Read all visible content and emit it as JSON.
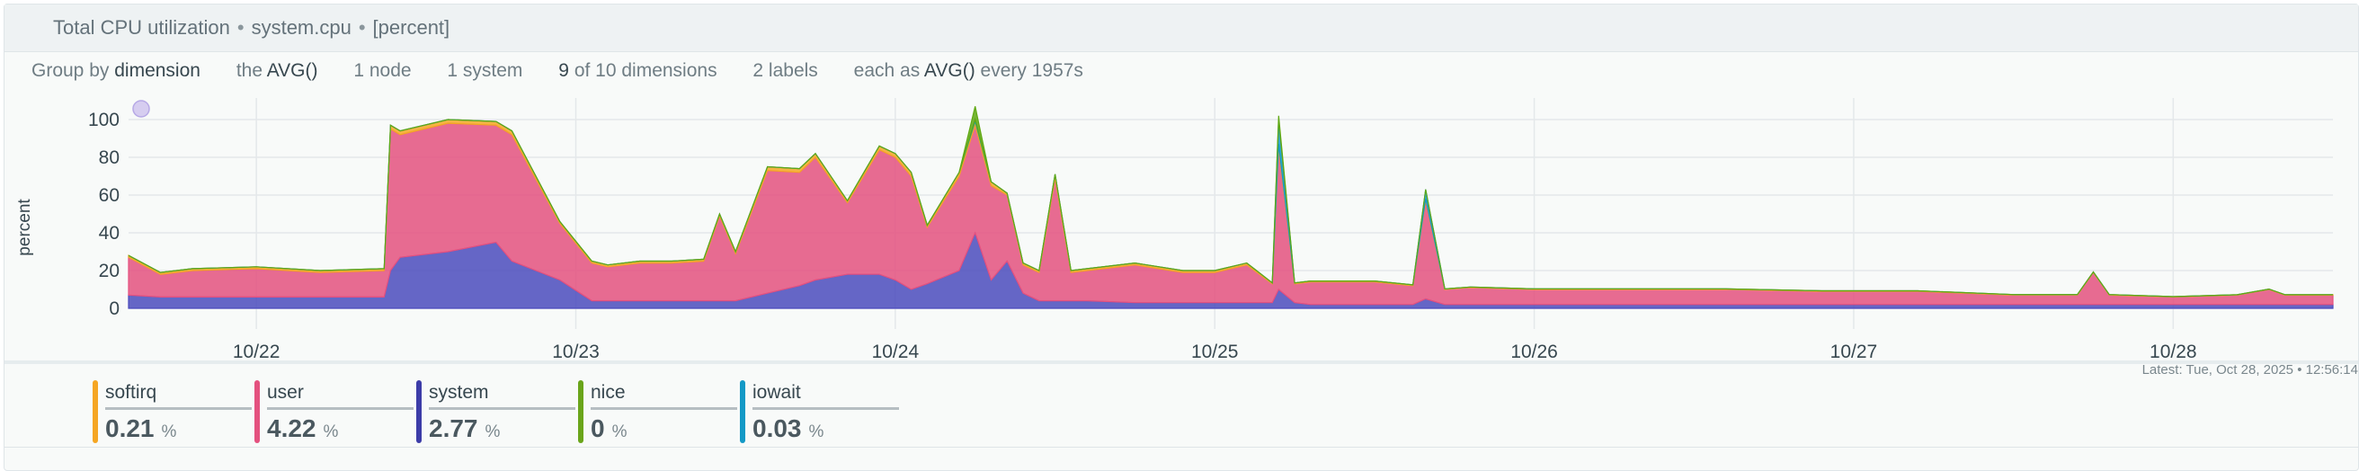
{
  "header": {
    "title": "Total CPU utilization",
    "context": "system.cpu",
    "units": "[percent]",
    "separator": "•"
  },
  "toolbar": {
    "group_by_prefix": "Group by",
    "group_by_value": "dimension",
    "agg_prefix": "the",
    "agg_value": "AVG()",
    "nodes": "1 node",
    "systems": "1 system",
    "dims_count": "9",
    "dims_rest": "of 10 dimensions",
    "labels": "2 labels",
    "each_prefix": "each as",
    "each_value": "AVG()",
    "each_suffix": "every 1957s"
  },
  "latest_text": "Latest:  Tue, Oct 28, 2025 • 12:56:14",
  "colors": {
    "softirq": "#f5a623",
    "user": "#e4517f",
    "system": "#4b4bbd",
    "nice": "#5fa812",
    "iowait": "#1399c6",
    "grid": "#e4e8ea",
    "axis_text": "#37474f"
  },
  "legend": [
    {
      "name": "softirq",
      "value": "0.21",
      "unit": "%",
      "color": "#f5a623"
    },
    {
      "name": "user",
      "value": "4.22",
      "unit": "%",
      "color": "#e4517f"
    },
    {
      "name": "system",
      "value": "2.77",
      "unit": "%",
      "color": "#3c3ca8"
    },
    {
      "name": "nice",
      "value": "0",
      "unit": "%",
      "color": "#6aa51a"
    },
    {
      "name": "iowait",
      "value": "0.03",
      "unit": "%",
      "color": "#1399c6"
    }
  ],
  "chart_data": {
    "type": "area",
    "stacked": true,
    "ylabel": "percent",
    "ylim": [
      0,
      100
    ],
    "yticks": [
      0,
      20,
      40,
      60,
      80,
      100
    ],
    "xlim": [
      21.6,
      28.5
    ],
    "x_tick_values": [
      22,
      23,
      24,
      25,
      26,
      27,
      28
    ],
    "x_tick_labels": [
      "10/22",
      "10/23",
      "10/24",
      "10/25",
      "10/26",
      "10/27",
      "10/28"
    ],
    "grid": true,
    "x": [
      21.6,
      21.7,
      21.8,
      22.0,
      22.2,
      22.4,
      22.42,
      22.45,
      22.6,
      22.75,
      22.8,
      22.95,
      23.05,
      23.1,
      23.2,
      23.3,
      23.4,
      23.45,
      23.5,
      23.6,
      23.7,
      23.75,
      23.85,
      23.95,
      24.0,
      24.05,
      24.1,
      24.2,
      24.25,
      24.3,
      24.35,
      24.4,
      24.45,
      24.5,
      24.55,
      24.6,
      24.75,
      24.9,
      25.0,
      25.1,
      25.18,
      25.2,
      25.25,
      25.3,
      25.5,
      25.62,
      25.66,
      25.72,
      25.8,
      26.0,
      26.3,
      26.6,
      26.9,
      27.2,
      27.5,
      27.7,
      27.75,
      27.8,
      28.0,
      28.2,
      28.3,
      28.35,
      28.5
    ],
    "series": [
      {
        "name": "system",
        "values": [
          7,
          6,
          6,
          6,
          6,
          6,
          20,
          27,
          30,
          35,
          25,
          15,
          4,
          4,
          4,
          4,
          4,
          4,
          4,
          8,
          12,
          15,
          18,
          18,
          15,
          10,
          13,
          20,
          40,
          15,
          25,
          8,
          4,
          4,
          4,
          4,
          3,
          3,
          3,
          3,
          3,
          10,
          3,
          2,
          2,
          2,
          5,
          2,
          2,
          2,
          2,
          2,
          2,
          2,
          2,
          2,
          2,
          2,
          2,
          2,
          2,
          2,
          2
        ]
      },
      {
        "name": "user",
        "values": [
          20,
          12,
          14,
          15,
          13,
          14,
          75,
          65,
          68,
          62,
          67,
          30,
          20,
          18,
          20,
          20,
          21,
          45,
          25,
          65,
          60,
          65,
          38,
          66,
          65,
          60,
          30,
          50,
          57,
          50,
          35,
          15,
          15,
          65,
          15,
          16,
          20,
          16,
          16,
          20,
          10,
          75,
          10,
          12,
          12,
          10,
          52,
          8,
          9,
          8,
          8,
          8,
          7,
          7,
          5,
          5,
          17,
          5,
          4,
          5,
          8,
          5,
          5
        ]
      },
      {
        "name": "softirq",
        "values": [
          1,
          1,
          1,
          1,
          1,
          1,
          2,
          2,
          2,
          2,
          2,
          1,
          1,
          1,
          1,
          1,
          1,
          1,
          1,
          2,
          2,
          2,
          1,
          2,
          2,
          2,
          1,
          2,
          2,
          2,
          1,
          1,
          1,
          2,
          1,
          1,
          1,
          1,
          1,
          1,
          0.5,
          2,
          0.5,
          0.5,
          0.5,
          0.5,
          1,
          0.3,
          0.3,
          0.3,
          0.3,
          0.3,
          0.3,
          0.3,
          0.3,
          0.3,
          0.3,
          0.3,
          0.2,
          0.2,
          0.2,
          0.2,
          0.2
        ]
      },
      {
        "name": "iowait",
        "values": [
          0,
          0,
          0,
          0,
          0,
          0,
          0,
          0,
          0,
          0,
          0,
          0,
          0,
          0,
          0,
          0,
          0,
          0,
          0,
          0,
          0,
          0,
          0,
          0,
          0,
          0,
          0,
          0,
          8,
          0,
          0,
          0,
          0,
          0,
          0,
          0,
          0,
          0,
          0,
          0,
          0,
          15,
          0,
          0,
          0,
          0,
          5,
          0,
          0,
          0,
          0,
          0,
          0,
          0,
          0,
          0,
          0,
          0,
          0,
          0,
          0,
          0,
          0
        ]
      },
      {
        "name": "nice",
        "values": [
          0,
          0,
          0,
          0,
          0,
          0,
          0,
          0,
          0,
          0,
          0,
          0,
          0,
          0,
          0,
          0,
          0,
          0,
          0,
          0,
          0,
          0,
          0,
          0,
          0,
          0,
          0,
          0,
          0,
          0,
          0,
          0,
          0,
          0,
          0,
          0,
          0,
          0,
          0,
          0,
          0,
          0,
          0,
          0,
          0,
          0,
          0,
          0,
          0,
          0,
          0,
          0,
          0,
          0,
          0,
          0,
          0,
          0,
          0,
          0,
          0,
          0,
          0
        ]
      }
    ]
  }
}
